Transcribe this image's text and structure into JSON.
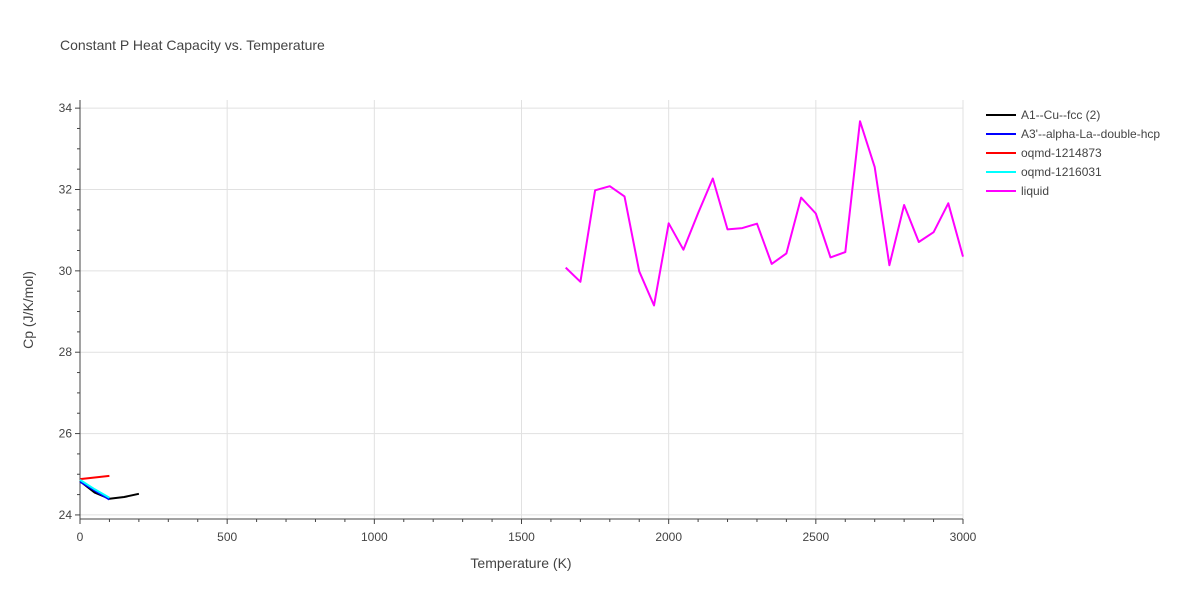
{
  "chart_data": {
    "type": "line",
    "title": "Constant P Heat Capacity vs. Temperature",
    "xlabel": "Temperature (K)",
    "ylabel": "Cp (J/K/mol)",
    "xlim": [
      0,
      3000
    ],
    "ylim": [
      23.9,
      34.2
    ],
    "xticks": [
      0,
      500,
      1000,
      1500,
      2000,
      2500,
      3000
    ],
    "yticks": [
      24,
      26,
      28,
      30,
      32,
      34
    ],
    "xtick_labels": [
      "0",
      "500",
      "1000",
      "1500",
      "2000",
      "2500",
      "3000"
    ],
    "ytick_labels": [
      "24",
      "26",
      "28",
      "30",
      "32",
      "34"
    ],
    "grid": true,
    "legend_position": "top-right",
    "series": [
      {
        "name": "A1--Cu--fcc (2)",
        "color": "#000000",
        "x": [
          0,
          50,
          100,
          150,
          200
        ],
        "y": [
          24.83,
          24.55,
          24.4,
          24.44,
          24.52
        ]
      },
      {
        "name": "A3'--alpha-La--double-hcp",
        "color": "#0000ff",
        "x": [
          0,
          50,
          100
        ],
        "y": [
          24.82,
          24.6,
          24.38
        ]
      },
      {
        "name": "oqmd-1214873",
        "color": "#ff0000",
        "x": [
          0,
          100
        ],
        "y": [
          24.88,
          24.96
        ]
      },
      {
        "name": "oqmd-1216031",
        "color": "#00ffff",
        "x": [
          0,
          50,
          100
        ],
        "y": [
          24.86,
          24.63,
          24.42
        ]
      },
      {
        "name": "liquid",
        "color": "#ff00ff",
        "x": [
          1650,
          1700,
          1750,
          1800,
          1850,
          1900,
          1950,
          2000,
          2050,
          2100,
          2150,
          2200,
          2250,
          2300,
          2350,
          2400,
          2450,
          2500,
          2550,
          2600,
          2650,
          2700,
          2750,
          2800,
          2850,
          2900,
          2950,
          3000
        ],
        "y": [
          30.08,
          29.73,
          31.98,
          32.08,
          31.83,
          29.99,
          29.15,
          31.17,
          30.52,
          31.42,
          32.27,
          31.02,
          31.05,
          31.16,
          30.17,
          30.43,
          31.8,
          31.41,
          30.33,
          30.46,
          33.68,
          32.55,
          30.14,
          31.62,
          30.71,
          30.95,
          31.66,
          30.35
        ]
      }
    ]
  }
}
